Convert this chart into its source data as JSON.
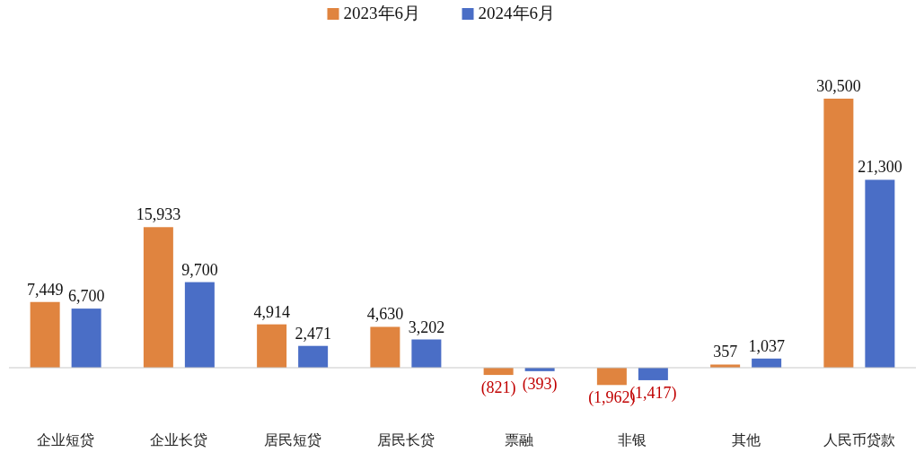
{
  "chart_data": {
    "type": "bar",
    "categories": [
      "企业短贷",
      "企业长贷",
      "居民短贷",
      "居民长贷",
      "票融",
      "非银",
      "其他",
      "人民币贷款"
    ],
    "series": [
      {
        "name": "2023年6月",
        "color": "#e0843f",
        "values": [
          7449,
          15933,
          4914,
          4630,
          -821,
          -1962,
          357,
          30500
        ],
        "value_labels": [
          "7,449",
          "15,933",
          "4,914",
          "4,630",
          "(821)",
          "(1,962)",
          "357",
          "30,500"
        ]
      },
      {
        "name": "2024年6月",
        "color": "#4a6ec6",
        "values": [
          6700,
          9700,
          2471,
          3202,
          -393,
          -1417,
          1037,
          21300
        ],
        "value_labels": [
          "6,700",
          "9,700",
          "2,471",
          "3,202",
          "(393)",
          "(1,417)",
          "1,037",
          "21,300"
        ]
      }
    ],
    "legend": "top",
    "tick_labels": "x"
  }
}
